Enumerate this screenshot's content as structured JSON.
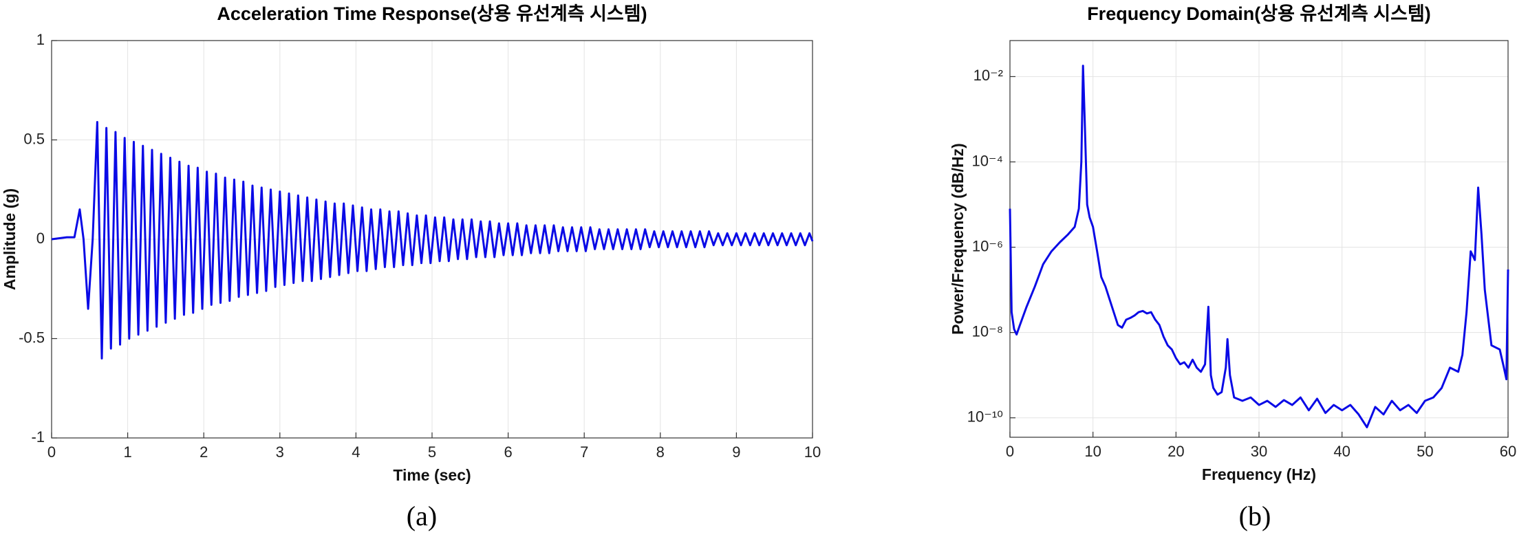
{
  "chart_data": [
    {
      "type": "line",
      "title": "Acceleration Time Response(상용 유선계측 시스템)",
      "xlabel": "Time (sec)",
      "ylabel": "Amplitude (g)",
      "caption": "(a)",
      "color": "#0a0ae6",
      "grid": true,
      "ylog": false,
      "xlim": [
        0,
        10
      ],
      "xticks": [
        0,
        1,
        2,
        3,
        4,
        5,
        6,
        7,
        8,
        9,
        10
      ],
      "ylim": [
        -1,
        1
      ],
      "yticks": [
        -1,
        -0.5,
        0,
        0.5,
        1
      ],
      "x": [
        0,
        0.2,
        0.3,
        0.37,
        0.42,
        0.48,
        0.54,
        0.6,
        0.66,
        0.72,
        0.78,
        0.84,
        0.9,
        0.96,
        1.02,
        1.08,
        1.14,
        1.2,
        1.26,
        1.32,
        1.38,
        1.44,
        1.5,
        1.56,
        1.62,
        1.68,
        1.74,
        1.8,
        1.86,
        1.92,
        1.98,
        2.04,
        2.1,
        2.16,
        2.22,
        2.28,
        2.34,
        2.4,
        2.46,
        2.52,
        2.58,
        2.64,
        2.7,
        2.76,
        2.82,
        2.88,
        2.94,
        3,
        3.06,
        3.12,
        3.18,
        3.24,
        3.3,
        3.36,
        3.42,
        3.48,
        3.54,
        3.6,
        3.66,
        3.72,
        3.78,
        3.84,
        3.9,
        3.96,
        4.02,
        4.08,
        4.14,
        4.2,
        4.26,
        4.32,
        4.38,
        4.44,
        4.5,
        4.56,
        4.62,
        4.68,
        4.74,
        4.8,
        4.86,
        4.92,
        4.98,
        5.04,
        5.1,
        5.16,
        5.22,
        5.28,
        5.34,
        5.4,
        5.46,
        5.52,
        5.58,
        5.64,
        5.7,
        5.76,
        5.82,
        5.88,
        5.94,
        6,
        6.06,
        6.12,
        6.18,
        6.24,
        6.3,
        6.36,
        6.42,
        6.48,
        6.54,
        6.6,
        6.66,
        6.72,
        6.78,
        6.84,
        6.9,
        6.96,
        7.02,
        7.08,
        7.14,
        7.2,
        7.26,
        7.32,
        7.38,
        7.44,
        7.5,
        7.56,
        7.62,
        7.68,
        7.74,
        7.8,
        7.86,
        7.92,
        7.98,
        8.04,
        8.1,
        8.16,
        8.22,
        8.28,
        8.34,
        8.4,
        8.46,
        8.52,
        8.58,
        8.64,
        8.7,
        8.76,
        8.82,
        8.88,
        8.94,
        9,
        9.06,
        9.12,
        9.18,
        9.24,
        9.3,
        9.36,
        9.42,
        9.48,
        9.54,
        9.6,
        9.66,
        9.72,
        9.78,
        9.84,
        9.9,
        9.96,
        10
      ],
      "values": [
        0,
        0.01,
        0.01,
        0.15,
        0,
        -0.35,
        0,
        0.59,
        -0.6,
        0.56,
        -0.55,
        0.54,
        -0.53,
        0.51,
        -0.5,
        0.49,
        -0.48,
        0.47,
        -0.46,
        0.45,
        -0.44,
        0.43,
        -0.42,
        0.41,
        -0.4,
        0.39,
        -0.38,
        0.37,
        -0.37,
        0.36,
        -0.35,
        0.34,
        -0.33,
        0.33,
        -0.32,
        0.31,
        -0.31,
        0.3,
        -0.29,
        0.29,
        -0.28,
        0.27,
        -0.27,
        0.26,
        -0.26,
        0.25,
        -0.24,
        0.24,
        -0.23,
        0.23,
        -0.22,
        0.22,
        -0.21,
        0.21,
        -0.21,
        0.2,
        -0.2,
        0.19,
        -0.19,
        0.18,
        -0.18,
        0.18,
        -0.17,
        0.17,
        -0.16,
        0.16,
        -0.16,
        0.15,
        -0.15,
        0.15,
        -0.14,
        0.14,
        -0.14,
        0.14,
        -0.13,
        0.13,
        -0.13,
        0.12,
        -0.12,
        0.12,
        -0.12,
        0.11,
        -0.11,
        0.11,
        -0.11,
        0.1,
        -0.1,
        0.1,
        -0.1,
        0.1,
        -0.09,
        0.09,
        -0.09,
        0.09,
        -0.09,
        0.08,
        -0.08,
        0.08,
        -0.08,
        0.08,
        -0.08,
        0.07,
        -0.07,
        0.07,
        -0.07,
        0.07,
        -0.07,
        0.07,
        -0.06,
        0.06,
        -0.06,
        0.06,
        -0.06,
        0.06,
        -0.06,
        0.06,
        -0.05,
        0.05,
        -0.05,
        0.05,
        -0.05,
        0.05,
        -0.05,
        0.05,
        -0.05,
        0.05,
        -0.05,
        0.05,
        -0.04,
        0.04,
        -0.04,
        0.04,
        -0.04,
        0.04,
        -0.04,
        0.04,
        -0.04,
        0.04,
        -0.04,
        0.04,
        -0.04,
        0.04,
        -0.03,
        0.03,
        -0.03,
        0.03,
        -0.03,
        0.03,
        -0.03,
        0.03,
        -0.03,
        0.03,
        -0.03,
        0.03,
        -0.03,
        0.03,
        -0.03,
        0.03,
        -0.03,
        0.03,
        -0.03,
        0.03,
        -0.03,
        0.03,
        -0.01
      ]
    },
    {
      "type": "line",
      "title": "Frequency Domain(상용 유선계측 시스템)",
      "xlabel": "Frequency (Hz)",
      "ylabel": "Power/Frequency (dB/Hz)",
      "caption": "(b)",
      "color": "#0a0ae6",
      "grid": true,
      "ylog": true,
      "xlim": [
        0,
        60
      ],
      "xticks": [
        0,
        10,
        20,
        30,
        40,
        50,
        60
      ],
      "ylim": [
        3.5e-11,
        0.07
      ],
      "yticks": [
        {
          "value": 1e-10,
          "label": "10⁻¹⁰"
        },
        {
          "value": 1e-08,
          "label": "10⁻⁸"
        },
        {
          "value": 1e-06,
          "label": "10⁻⁶"
        },
        {
          "value": 0.0001,
          "label": "10⁻⁴"
        },
        {
          "value": 0.01,
          "label": "10⁻²"
        }
      ],
      "x": [
        0,
        0.2,
        0.5,
        0.8,
        1.2,
        2,
        3,
        4,
        5,
        6,
        7,
        7.8,
        8.3,
        8.6,
        8.8,
        9,
        9.3,
        9.6,
        10,
        10.5,
        11,
        11.5,
        12,
        12.5,
        13,
        13.5,
        14,
        14.5,
        15,
        15.5,
        16,
        16.5,
        17,
        17.5,
        18,
        18.5,
        19,
        19.5,
        20,
        20.5,
        21,
        21.5,
        22,
        22.5,
        23,
        23.5,
        23.9,
        24.2,
        24.5,
        25,
        25.5,
        26,
        26.2,
        26.5,
        27,
        28,
        29,
        30,
        31,
        32,
        33,
        34,
        35,
        36,
        37,
        38,
        39,
        40,
        41,
        42,
        43,
        44,
        45,
        46,
        47,
        48,
        49,
        50,
        51,
        52,
        53,
        54,
        54.5,
        55,
        55.5,
        56,
        56.4,
        56.8,
        57.2,
        58,
        59,
        59.5,
        59.8,
        60
      ],
      "values": [
        8e-06,
        3e-08,
        1.2e-08,
        9e-09,
        1.5e-08,
        4e-08,
        1.2e-07,
        4e-07,
        8e-07,
        1.3e-06,
        2e-06,
        3e-06,
        8e-06,
        0.0001,
        0.018,
        0.001,
        1e-05,
        5e-06,
        3e-06,
        8e-07,
        2e-07,
        1.2e-07,
        6e-08,
        3e-08,
        1.5e-08,
        1.3e-08,
        2e-08,
        2.2e-08,
        2.5e-08,
        3e-08,
        3.2e-08,
        2.8e-08,
        3e-08,
        2e-08,
        1.5e-08,
        8e-09,
        5e-09,
        4e-09,
        2.5e-09,
        1.8e-09,
        2e-09,
        1.5e-09,
        2.3e-09,
        1.5e-09,
        1.2e-09,
        1.8e-09,
        4e-08,
        1e-09,
        5e-10,
        3.5e-10,
        4e-10,
        1.5e-09,
        7e-09,
        1e-09,
        3e-10,
        2.5e-10,
        3e-10,
        2e-10,
        2.5e-10,
        1.8e-10,
        2.6e-10,
        2e-10,
        3e-10,
        1.5e-10,
        2.8e-10,
        1.3e-10,
        2e-10,
        1.5e-10,
        2e-10,
        1.2e-10,
        6e-11,
        1.8e-10,
        1.2e-10,
        2.5e-10,
        1.5e-10,
        2e-10,
        1.3e-10,
        2.5e-10,
        3e-10,
        5e-10,
        1.5e-09,
        1.2e-09,
        3e-09,
        3e-08,
        8e-07,
        5e-07,
        2.5e-05,
        2e-06,
        1e-07,
        5e-09,
        4e-09,
        1.5e-09,
        8e-10,
        3e-07
      ]
    }
  ]
}
